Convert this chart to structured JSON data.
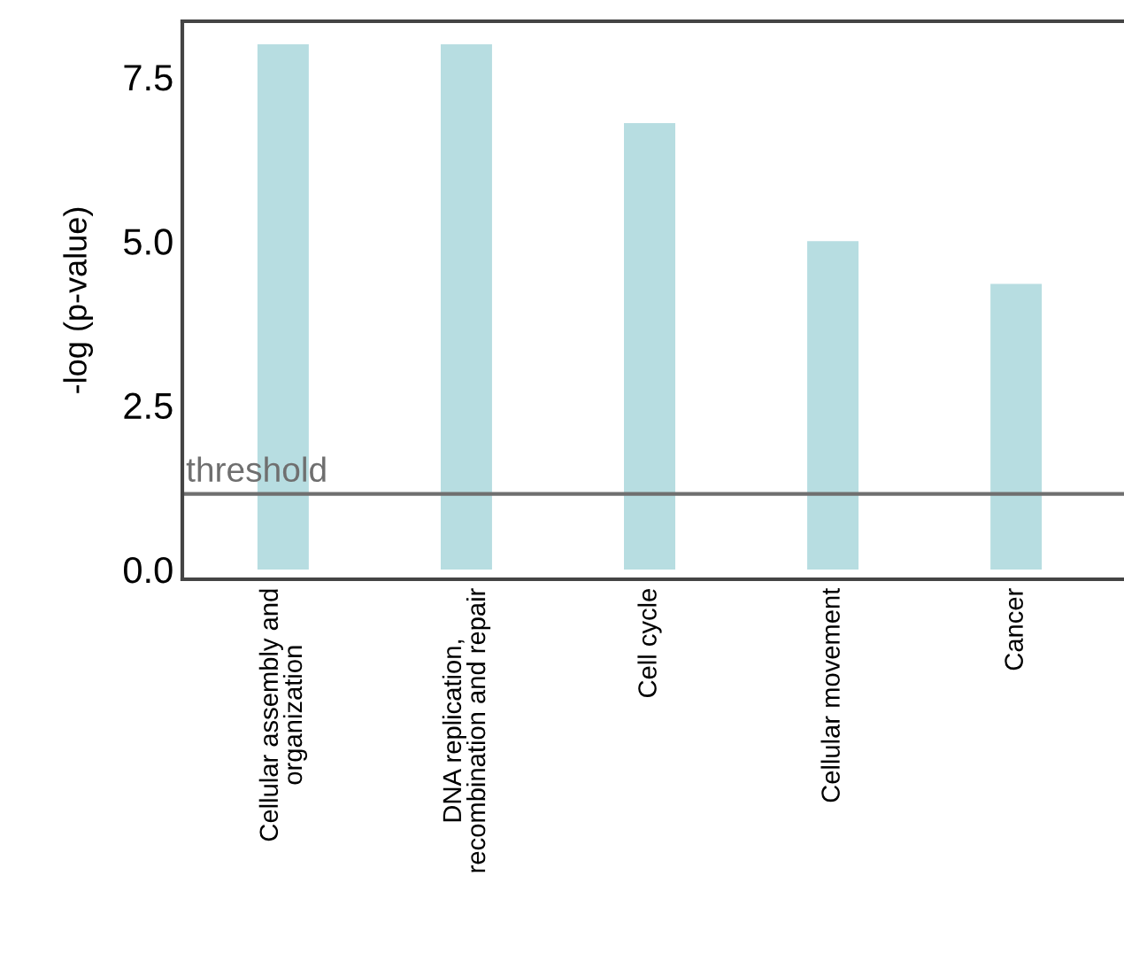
{
  "chart_data": {
    "type": "bar",
    "ylabel": "-log (p-value)",
    "categories": [
      "Cellular assembly and\norganization",
      "DNA replication,\nrecombination and repair",
      "Cell cycle",
      "Cellular movement",
      "Cancer"
    ],
    "values": [
      8.0,
      8.0,
      6.8,
      5.0,
      4.35
    ],
    "color": "#b7dde1",
    "ylim": [
      -0.15,
      8.35
    ],
    "yticks": [
      {
        "value": 0,
        "label": "0.0"
      },
      {
        "value": 2.5,
        "label": "2.5"
      },
      {
        "value": 5,
        "label": "5.0"
      },
      {
        "value": 7.5,
        "label": "7.5"
      }
    ],
    "ref_lines": [
      {
        "axis": "y",
        "value": 1.15,
        "label": "threshold",
        "color": "#6f6f6f"
      }
    ],
    "grid": false
  }
}
